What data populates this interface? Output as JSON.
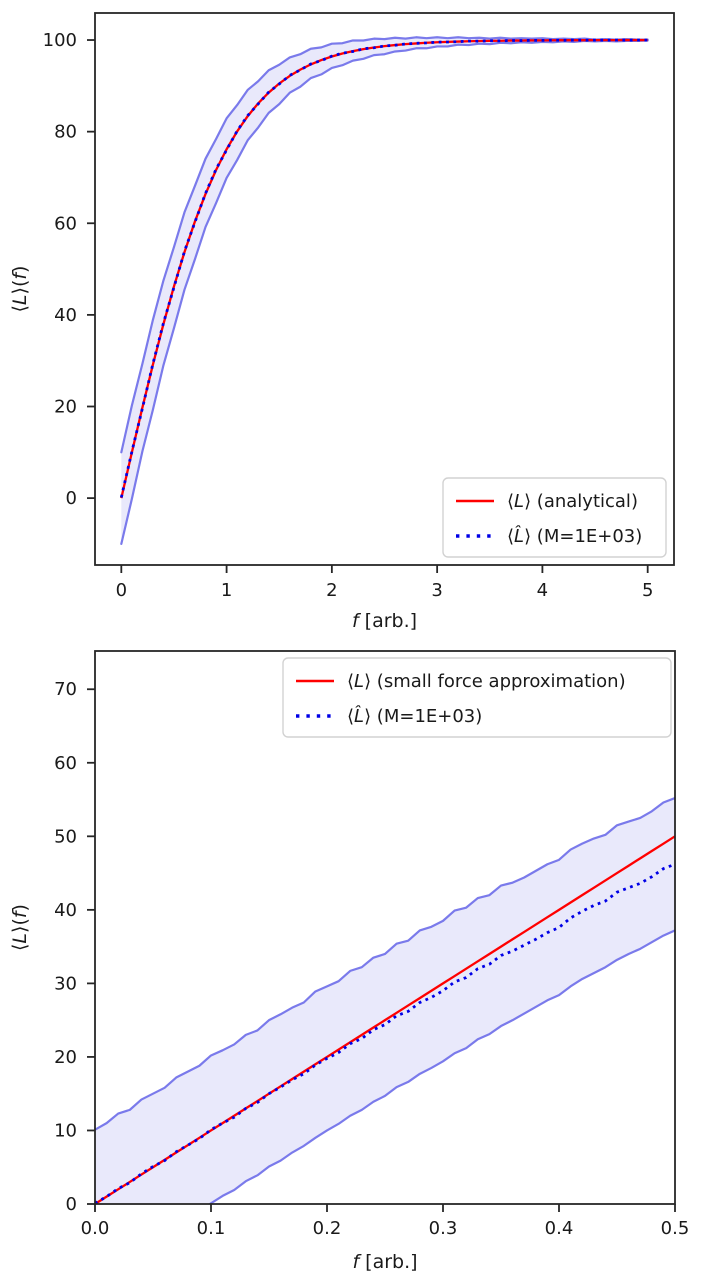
{
  "figure": {
    "background": "#ffffff",
    "description": "Two stacked line plots of mean extension vs force with Monte-Carlo estimate and uncertainty band"
  },
  "colors": {
    "analytical": "#ff0000",
    "estimate": "#0000e6",
    "band_edge": "#7a7aeb",
    "band_fill": "#e9e9fb",
    "axis": "#262626",
    "text": "#1a1a1a",
    "legend_border": "#d2d2d2",
    "legend_bg": "#ffffff"
  },
  "chart_data": [
    {
      "id": "top",
      "type": "line",
      "title": "",
      "xlabel_segments": [
        {
          "t": "f",
          "i": true
        },
        {
          "t": " [arb.]",
          "i": false
        }
      ],
      "ylabel_segments": [
        {
          "t": "⟨",
          "i": false
        },
        {
          "t": "L",
          "i": true
        },
        {
          "t": "⟩(",
          "i": false
        },
        {
          "t": "f",
          "i": true
        },
        {
          "t": ")",
          "i": false
        }
      ],
      "xlim": [
        -0.25,
        5.25
      ],
      "ylim": [
        -14.6,
        105.9
      ],
      "xticks": [
        0,
        1,
        2,
        3,
        4,
        5
      ],
      "xtick_labels": [
        "0",
        "1",
        "2",
        "3",
        "4",
        "5"
      ],
      "yticks": [
        0,
        20,
        40,
        60,
        80,
        100
      ],
      "ytick_labels": [
        "0",
        "20",
        "40",
        "60",
        "80",
        "100"
      ],
      "grid": false,
      "legend": {
        "loc": "lower right",
        "entries": [
          {
            "style": "solid",
            "color_key": "analytical",
            "label_segments": [
              {
                "t": "⟨",
                "i": false
              },
              {
                "t": "L",
                "i": true
              },
              {
                "t": "⟩ (analytical)",
                "i": false
              }
            ],
            "label_text": "⟨L⟩ (analytical)"
          },
          {
            "style": "dotted",
            "color_key": "estimate",
            "label_segments": [
              {
                "t": "⟨",
                "i": false
              },
              {
                "t": "L̂",
                "i": true
              },
              {
                "t": "⟩ (M=1E+03)",
                "i": false
              }
            ],
            "label_text": "⟨L̂⟩ (M=1E+03)"
          }
        ]
      },
      "f": [
        0,
        0.1,
        0.2,
        0.3,
        0.4,
        0.5,
        0.6,
        0.7,
        0.8,
        0.9,
        1,
        1.1,
        1.2,
        1.3,
        1.4,
        1.5,
        1.6,
        1.7,
        1.8,
        1.9,
        2,
        2.1,
        2.2,
        2.3,
        2.4,
        2.5,
        2.6,
        2.7,
        2.8,
        2.9,
        3,
        3.1,
        3.2,
        3.3,
        3.4,
        3.5,
        3.6,
        3.7,
        3.8,
        3.9,
        4,
        4.1,
        4.2,
        4.3,
        4.4,
        4.5,
        4.6,
        4.7,
        4.8,
        4.9,
        5
      ],
      "analytical": [
        0,
        9.97,
        19.74,
        29.13,
        37.99,
        46.21,
        53.7,
        60.44,
        66.4,
        71.63,
        76.16,
        80.05,
        83.37,
        86.17,
        88.53,
        90.51,
        92.17,
        93.54,
        94.68,
        95.62,
        96.4,
        97.05,
        97.57,
        98.01,
        98.37,
        98.66,
        98.9,
        99.1,
        99.26,
        99.4,
        99.51,
        99.59,
        99.67,
        99.73,
        99.78,
        99.82,
        99.85,
        99.88,
        99.9,
        99.92,
        99.93,
        99.95,
        99.96,
        99.96,
        99.97,
        99.98,
        99.98,
        99.98,
        99.99,
        99.99,
        99.99
      ],
      "estimate": [
        0.15,
        10.12,
        19.58,
        29.32,
        38.2,
        46.02,
        53.88,
        60.3,
        66.52,
        71.81,
        76.01,
        80.14,
        83.49,
        86.05,
        88.62,
        90.4,
        92.28,
        93.47,
        94.77,
        95.53,
        96.49,
        97.12,
        97.49,
        98.09,
        98.31,
        98.71,
        98.86,
        99.14,
        99.28,
        99.37,
        99.54,
        99.57,
        99.64,
        99.76,
        99.75,
        99.84,
        99.83,
        99.9,
        99.88,
        99.93,
        99.92,
        99.96,
        99.94,
        99.98,
        99.96,
        99.99,
        99.97,
        100,
        99.98,
        100,
        99.99
      ],
      "band_upper": [
        10,
        20.2,
        29.3,
        38.9,
        47.5,
        54.8,
        62.4,
        68.2,
        74.1,
        78.4,
        82.9,
        85.8,
        89.1,
        91,
        93.4,
        94.6,
        96.2,
        96.9,
        98.1,
        98.4,
        99.2,
        99.3,
        99.9,
        99.9,
        100.3,
        100.2,
        100.5,
        100.3,
        100.6,
        100.4,
        100.6,
        100.4,
        100.6,
        100.4,
        100.5,
        100.3,
        100.5,
        100.3,
        100.4,
        100.3,
        100.4,
        100.2,
        100.3,
        100.2,
        100.3,
        100.1,
        100.2,
        100.1,
        100.2,
        100.1,
        100.1
      ],
      "band_lower": [
        -10,
        -0.2,
        10.2,
        19.3,
        29,
        37.1,
        45.5,
        52.2,
        59.2,
        64.4,
        69.9,
        73.8,
        78.1,
        80.9,
        84.1,
        86,
        88.5,
        89.8,
        91.7,
        92.5,
        93.9,
        94.5,
        95.5,
        95.9,
        96.7,
        96.9,
        97.5,
        97.7,
        98.2,
        98.2,
        98.6,
        98.6,
        99,
        98.9,
        99.2,
        99.1,
        99.4,
        99.3,
        99.5,
        99.4,
        99.6,
        99.5,
        99.7,
        99.6,
        99.8,
        99.7,
        99.8,
        99.7,
        99.8,
        99.8,
        99.9
      ]
    },
    {
      "id": "bottom",
      "type": "line",
      "title": "",
      "xlabel_segments": [
        {
          "t": "f",
          "i": true
        },
        {
          "t": " [arb.]",
          "i": false
        }
      ],
      "ylabel_segments": [
        {
          "t": "⟨",
          "i": false
        },
        {
          "t": "L",
          "i": true
        },
        {
          "t": "⟩(",
          "i": false
        },
        {
          "t": "f",
          "i": true
        },
        {
          "t": ")",
          "i": false
        }
      ],
      "xlim": [
        0,
        0.5
      ],
      "ylim": [
        0,
        75.2
      ],
      "xticks": [
        0,
        0.1,
        0.2,
        0.3,
        0.4,
        0.5
      ],
      "xtick_labels": [
        "0.0",
        "0.1",
        "0.2",
        "0.3",
        "0.4",
        "0.5"
      ],
      "yticks": [
        0,
        10,
        20,
        30,
        40,
        50,
        60,
        70
      ],
      "ytick_labels": [
        "0",
        "10",
        "20",
        "30",
        "40",
        "50",
        "60",
        "70"
      ],
      "grid": false,
      "legend": {
        "loc": "upper right",
        "entries": [
          {
            "style": "solid",
            "color_key": "analytical",
            "label_segments": [
              {
                "t": "⟨",
                "i": false
              },
              {
                "t": "L",
                "i": true
              },
              {
                "t": "⟩ (small force approximation)",
                "i": false
              }
            ],
            "label_text": "⟨L⟩ (small force approximation)"
          },
          {
            "style": "dotted",
            "color_key": "estimate",
            "label_segments": [
              {
                "t": "⟨",
                "i": false
              },
              {
                "t": "L̂",
                "i": true
              },
              {
                "t": "⟩ (M=1E+03)",
                "i": false
              }
            ],
            "label_text": "⟨L̂⟩ (M=1E+03)"
          }
        ]
      },
      "f": [
        0,
        0.01,
        0.02,
        0.03,
        0.04,
        0.05,
        0.06,
        0.07,
        0.08,
        0.09,
        0.1,
        0.11,
        0.12,
        0.13,
        0.14,
        0.15,
        0.16,
        0.17,
        0.18,
        0.19,
        0.2,
        0.21,
        0.22,
        0.23,
        0.24,
        0.25,
        0.26,
        0.27,
        0.28,
        0.29,
        0.3,
        0.31,
        0.32,
        0.33,
        0.34,
        0.35,
        0.36,
        0.37,
        0.38,
        0.39,
        0.4,
        0.41,
        0.42,
        0.43,
        0.44,
        0.45,
        0.46,
        0.47,
        0.48,
        0.49,
        0.5
      ],
      "analytical": [
        0,
        1,
        2,
        3,
        4,
        5,
        6,
        7,
        8,
        9,
        10,
        11,
        12,
        13,
        14,
        15,
        16,
        17,
        18,
        19,
        20,
        21,
        22,
        23,
        24,
        25,
        26,
        27,
        28,
        29,
        30,
        31,
        32,
        33,
        34,
        35,
        36,
        37,
        38,
        39,
        40,
        41,
        42,
        43,
        44,
        45,
        46,
        47,
        48,
        49,
        50
      ],
      "estimate": [
        0.1,
        1,
        2.1,
        2.9,
        4.1,
        5.1,
        5.9,
        7.1,
        8,
        8.9,
        10.1,
        11,
        11.8,
        13,
        13.8,
        15,
        15.9,
        16.9,
        17.7,
        18.9,
        19.8,
        20.6,
        21.8,
        22.5,
        23.7,
        24.4,
        25.6,
        26.2,
        27.4,
        28.1,
        29,
        30.2,
        30.8,
        32,
        32.6,
        33.8,
        34.4,
        35.2,
        36,
        36.9,
        37.6,
        38.9,
        39.8,
        40.6,
        41.2,
        42.4,
        43,
        43.6,
        44.5,
        45.6,
        46.2
      ],
      "band_upper": [
        10.1,
        11,
        12.3,
        12.8,
        14.2,
        15,
        15.8,
        17.2,
        18,
        18.8,
        20.2,
        20.9,
        21.7,
        23,
        23.6,
        25,
        25.8,
        26.7,
        27.4,
        28.9,
        29.6,
        30.3,
        31.7,
        32.2,
        33.5,
        34,
        35.4,
        35.8,
        37.2,
        37.7,
        38.5,
        39.9,
        40.3,
        41.6,
        42,
        43.3,
        43.7,
        44.4,
        45.3,
        46.2,
        46.8,
        48.2,
        49,
        49.7,
        50.2,
        51.5,
        52,
        52.5,
        53.4,
        54.6,
        55.2
      ],
      "band_lower": [
        -9.9,
        -9,
        -7.9,
        -7.1,
        -6,
        -4.9,
        -4.1,
        -2.9,
        -2,
        -1.1,
        0.1,
        1.1,
        1.9,
        3.1,
        3.9,
        5.1,
        5.9,
        7,
        7.9,
        9,
        10,
        10.9,
        12,
        12.8,
        13.9,
        14.7,
        15.9,
        16.6,
        17.7,
        18.5,
        19.4,
        20.5,
        21.2,
        22.4,
        23.1,
        24.2,
        25,
        25.9,
        26.8,
        27.7,
        28.4,
        29.6,
        30.6,
        31.4,
        32.2,
        33.2,
        34,
        34.7,
        35.6,
        36.5,
        37.2
      ]
    }
  ]
}
